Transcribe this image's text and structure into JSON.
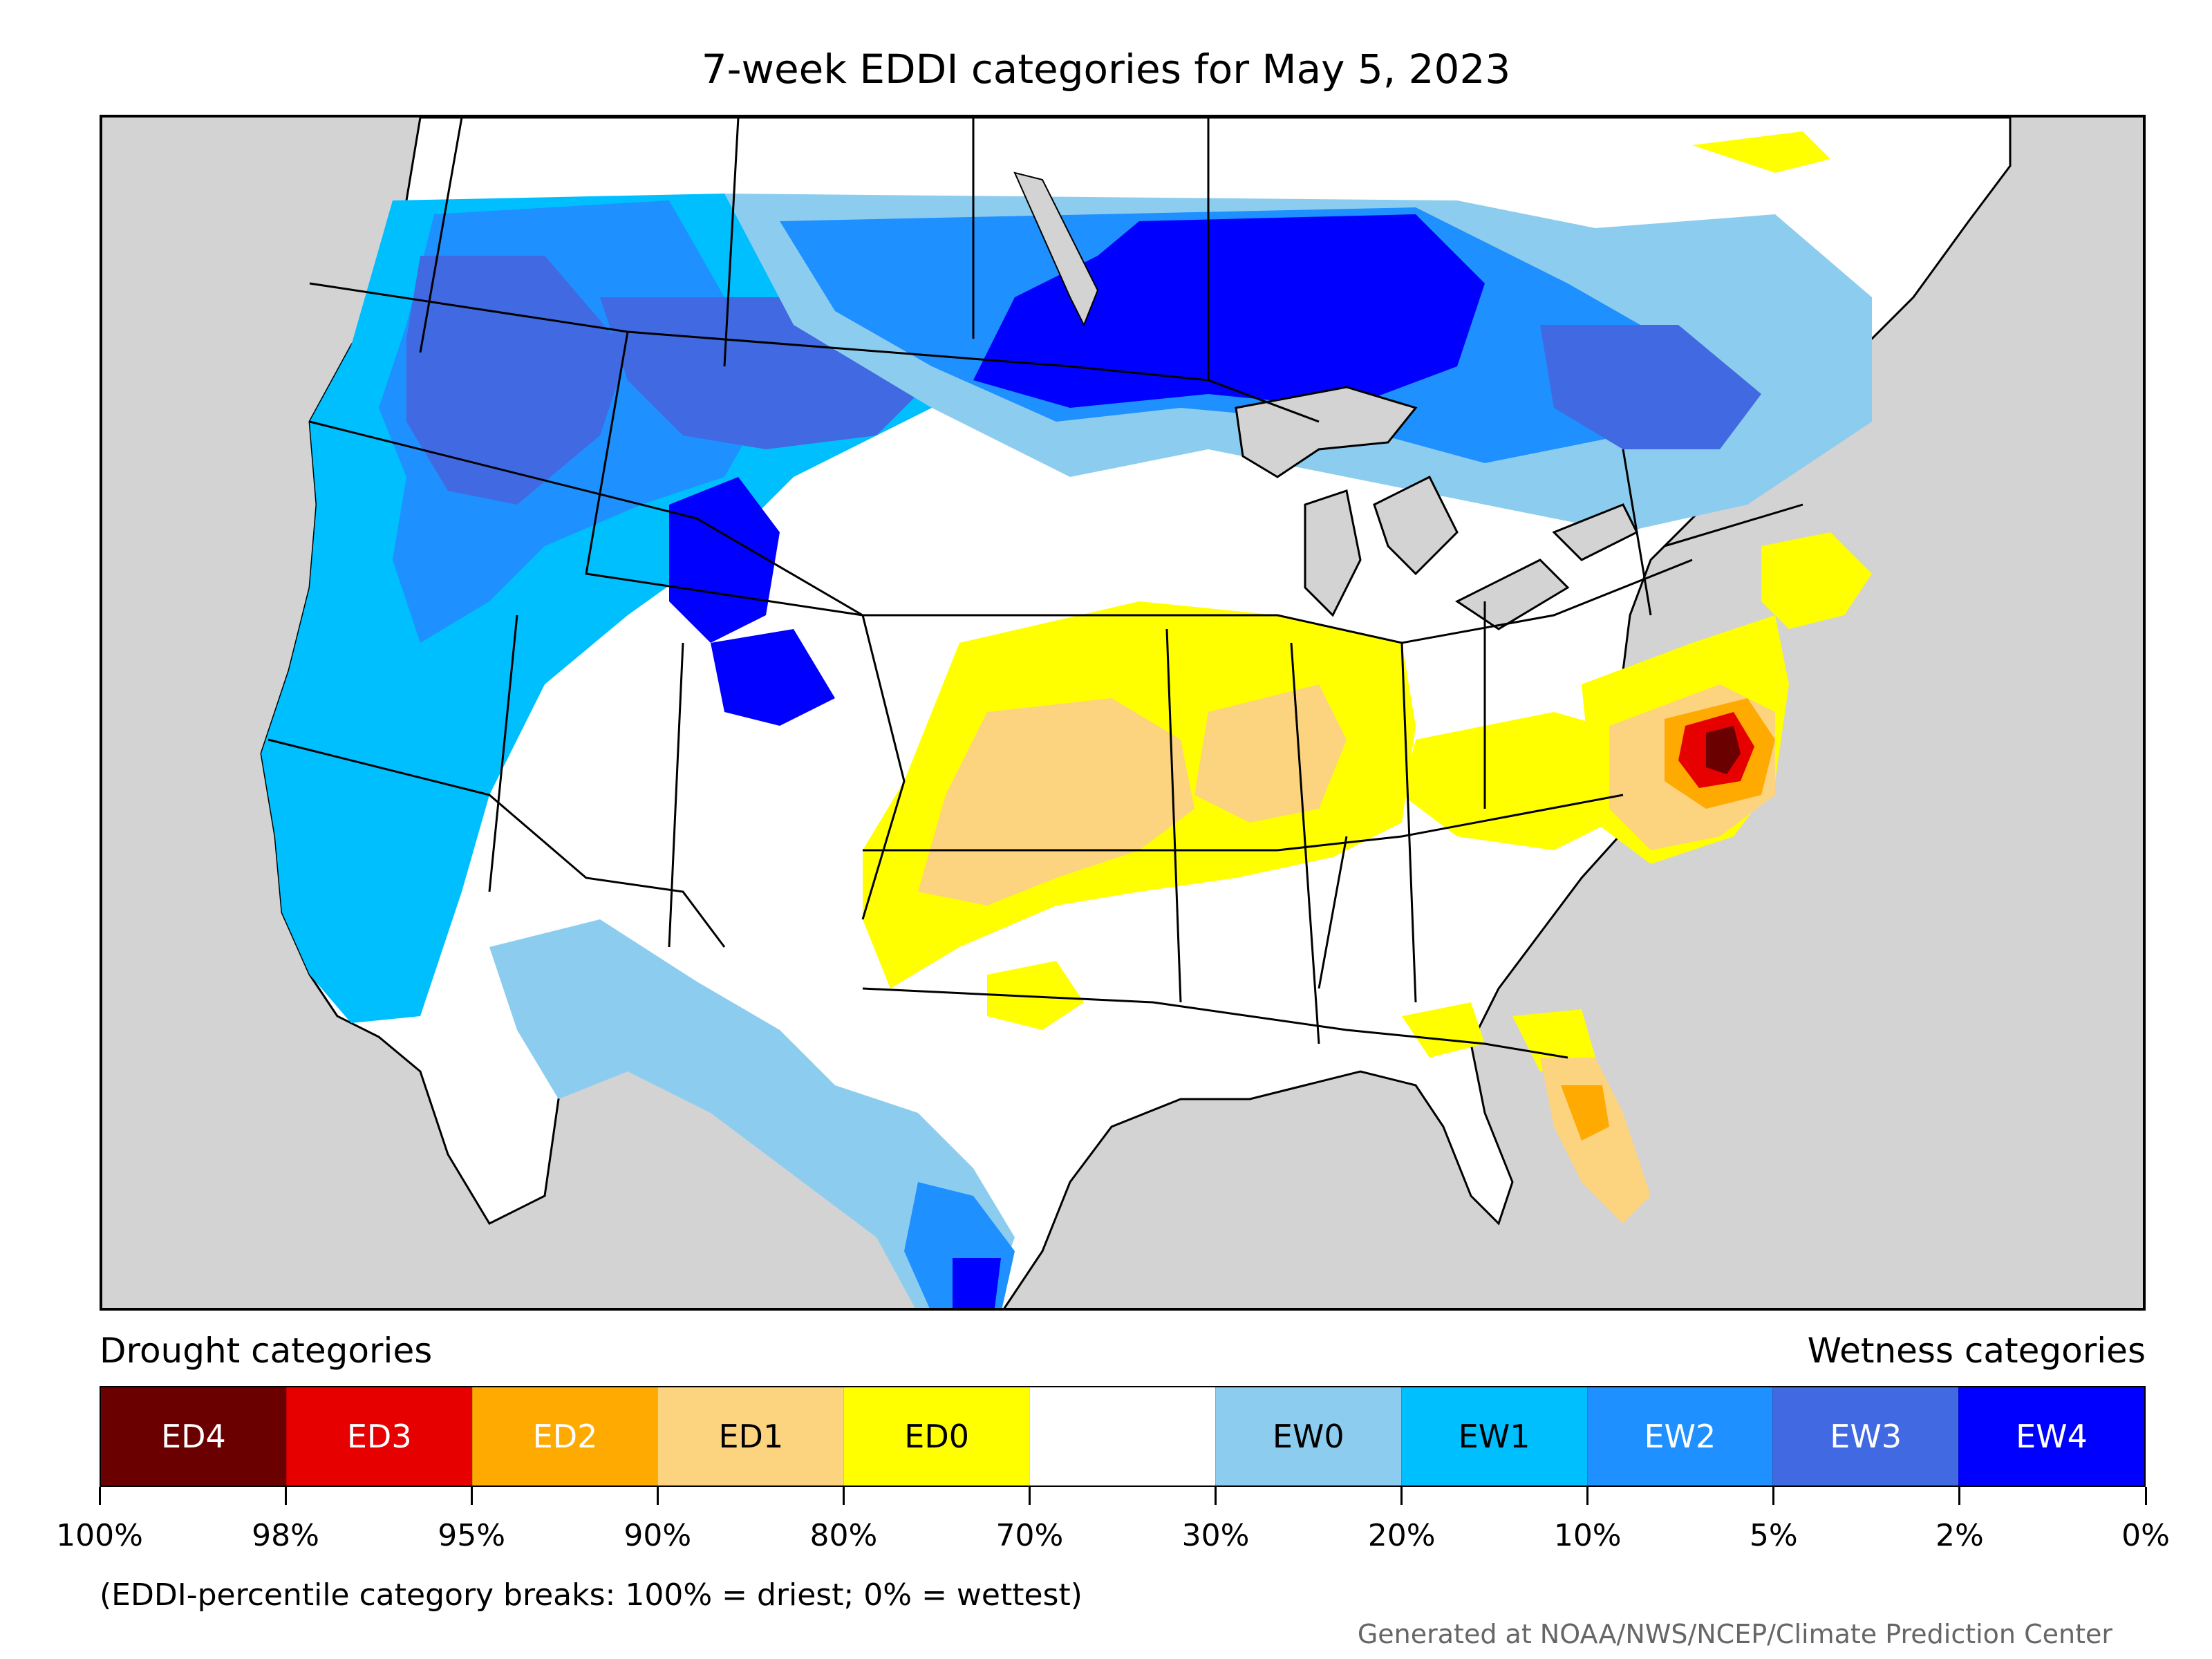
{
  "title": "7-week EDDI categories for May 5, 2023",
  "legend": {
    "drought_heading": "Drought categories",
    "wetness_heading": "Wetness categories",
    "categories": [
      {
        "label": "ED4",
        "color": "#6b0000",
        "text_color": "#ffffff"
      },
      {
        "label": "ED3",
        "color": "#e60000",
        "text_color": "#ffffff"
      },
      {
        "label": "ED2",
        "color": "#ffaa00",
        "text_color": "#ffffff"
      },
      {
        "label": "ED1",
        "color": "#fcd37f",
        "text_color": "#000000"
      },
      {
        "label": "ED0",
        "color": "#ffff00",
        "text_color": "#000000"
      },
      {
        "label": "",
        "color": "#ffffff",
        "text_color": "#000000"
      },
      {
        "label": "EW0",
        "color": "#8ccdef",
        "text_color": "#000000"
      },
      {
        "label": "EW1",
        "color": "#00bfff",
        "text_color": "#000000"
      },
      {
        "label": "EW2",
        "color": "#1e90ff",
        "text_color": "#ffffff"
      },
      {
        "label": "EW3",
        "color": "#4169e1",
        "text_color": "#ffffff"
      },
      {
        "label": "EW4",
        "color": "#0000ff",
        "text_color": "#ffffff"
      }
    ],
    "tick_labels": [
      "100%",
      "98%",
      "95%",
      "90%",
      "80%",
      "70%",
      "30%",
      "20%",
      "10%",
      "5%",
      "2%",
      "0%"
    ]
  },
  "note": "(EDDI-percentile category breaks: 100% = driest; 0% = wettest)",
  "credit": "Generated at NOAA/NWS/NCEP/Climate Prediction Center",
  "map": {
    "land_color": "#ffffff",
    "water_color": "#d3d3d3",
    "border_color": "#000000",
    "regions": [
      {
        "name": "pacific-northwest",
        "category": "EW3"
      },
      {
        "name": "northern-rockies",
        "category": "EW2"
      },
      {
        "name": "northern-plains-canada",
        "category": "EW4"
      },
      {
        "name": "wyoming-colorado",
        "category": "EW4"
      },
      {
        "name": "california-coast",
        "category": "EW1"
      },
      {
        "name": "great-lakes-canada",
        "category": "EW2"
      },
      {
        "name": "quebec",
        "category": "EW3"
      },
      {
        "name": "southwest",
        "category": "EW0"
      },
      {
        "name": "texas-coast",
        "category": "EW2"
      },
      {
        "name": "central-plains",
        "category": "ED0"
      },
      {
        "name": "kansas-oklahoma",
        "category": "ED1"
      },
      {
        "name": "illinois-missouri",
        "category": "ED1"
      },
      {
        "name": "mid-atlantic",
        "category": "ED1"
      },
      {
        "name": "virginia-maryland",
        "category": "ED3"
      },
      {
        "name": "chesapeake-core",
        "category": "ED4"
      },
      {
        "name": "florida",
        "category": "ED1"
      },
      {
        "name": "new-england",
        "category": "ED0"
      }
    ]
  }
}
